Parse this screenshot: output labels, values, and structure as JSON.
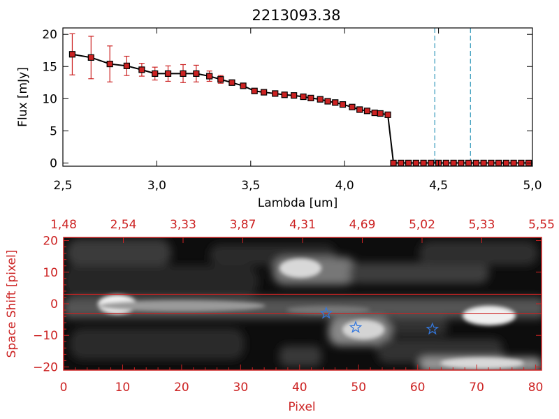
{
  "chart_data": [
    {
      "type": "line",
      "title": "2213093.38",
      "xlabel": "Lambda [um]",
      "ylabel": "Flux [mJy]",
      "xlim": [
        2.5,
        5.0
      ],
      "ylim": [
        -0.5,
        21
      ],
      "x_ticks": [
        "2.5",
        "3.0",
        "3.5",
        "4.0",
        "4.5",
        "5.0"
      ],
      "y_ticks": [
        "0",
        "5",
        "10",
        "15",
        "20"
      ],
      "series": [
        {
          "name": "flux",
          "color": "#000000",
          "marker_color": "#cc2222",
          "x": [
            2.55,
            2.65,
            2.75,
            2.84,
            2.92,
            2.99,
            3.06,
            3.14,
            3.21,
            3.28,
            3.34,
            3.4,
            3.46,
            3.52,
            3.57,
            3.63,
            3.68,
            3.73,
            3.78,
            3.82,
            3.87,
            3.91,
            3.95,
            3.99,
            4.04,
            4.08,
            4.12,
            4.16,
            4.19,
            4.23,
            4.26,
            4.3,
            4.34,
            4.38,
            4.42,
            4.46,
            4.5,
            4.54,
            4.58,
            4.62,
            4.66,
            4.7,
            4.74,
            4.78,
            4.82,
            4.86,
            4.9,
            4.94,
            4.98
          ],
          "y": [
            16.9,
            16.4,
            15.4,
            15.1,
            14.5,
            13.9,
            13.9,
            13.9,
            13.9,
            13.5,
            13.0,
            12.5,
            12.0,
            11.2,
            11.0,
            10.8,
            10.6,
            10.5,
            10.3,
            10.1,
            9.9,
            9.6,
            9.4,
            9.1,
            8.7,
            8.3,
            8.1,
            7.8,
            7.7,
            7.5,
            0,
            0,
            0,
            0,
            0,
            0,
            0,
            0,
            0,
            0,
            0,
            0,
            0,
            0,
            0,
            0,
            0,
            0,
            0
          ],
          "err": [
            3.2,
            3.3,
            2.8,
            1.5,
            1.0,
            1.0,
            1.2,
            1.4,
            1.3,
            0.8,
            0.6,
            0,
            0,
            0,
            0,
            0,
            0,
            0,
            0,
            0,
            0,
            0,
            0,
            0,
            0,
            0,
            0,
            0,
            0,
            0,
            0,
            0,
            0,
            0,
            0,
            0,
            0,
            0,
            0,
            0,
            0,
            0,
            0,
            0,
            0,
            0,
            0,
            0,
            0
          ]
        }
      ],
      "vlines": [
        4.48,
        4.67
      ],
      "vline_color": "#3399bb"
    },
    {
      "type": "heatmap",
      "xlabel": "Pixel",
      "ylabel": "Space Shift [pixel]",
      "xlim": [
        0,
        81
      ],
      "ylim": [
        -21,
        21
      ],
      "x_ticks": [
        "0",
        "10",
        "20",
        "30",
        "40",
        "50",
        "60",
        "70",
        "80"
      ],
      "y_ticks": [
        "20",
        "10",
        "0",
        "-10",
        "-20"
      ],
      "top_ticks": [
        "1.48",
        "2.54",
        "3.33",
        "3.87",
        "4.31",
        "4.69",
        "5.02",
        "5.33",
        "5.55"
      ],
      "hlines": [
        3,
        -3
      ],
      "stars": [
        {
          "x": 44.5,
          "y": -3
        },
        {
          "x": 49.5,
          "y": -7.5
        },
        {
          "x": 62.5,
          "y": -8
        }
      ],
      "line_color": "#cc2222",
      "star_color": "#3377dd"
    }
  ]
}
